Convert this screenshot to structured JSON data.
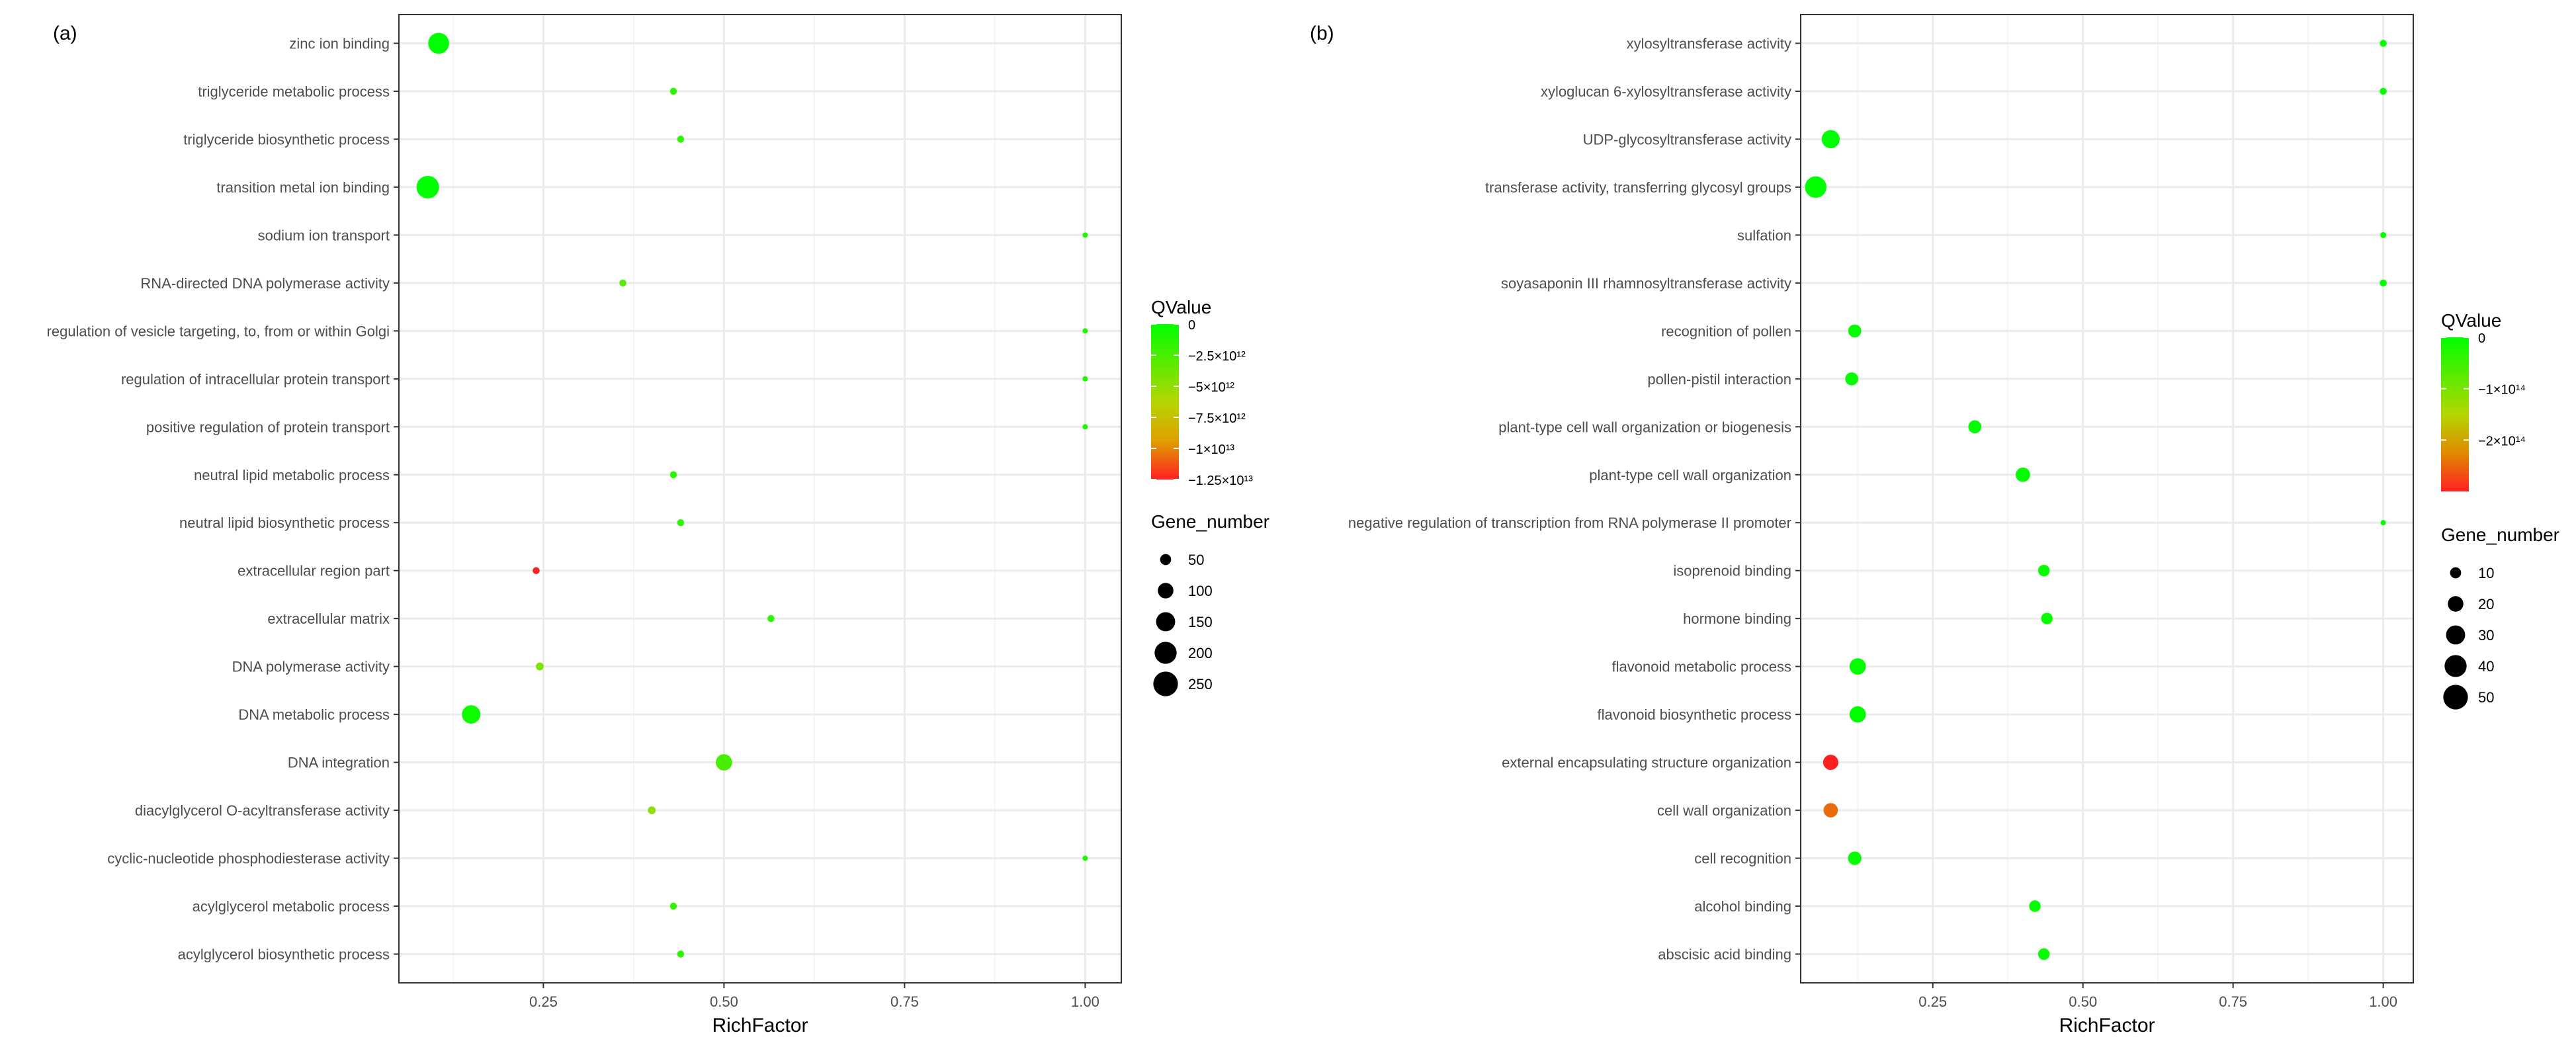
{
  "panels": [
    {
      "panel_label": "(a)",
      "chart_data": {
        "type": "scatter",
        "title": "",
        "xlabel": "RichFactor",
        "ylabel": "",
        "xlim": [
          0.05,
          1.05
        ],
        "xticks": [
          0.25,
          0.5,
          0.75,
          1.0
        ],
        "xtick_labels": [
          "0.25",
          "0.50",
          "0.75",
          "1.00"
        ],
        "grid": true,
        "categories": [
          "zinc ion binding",
          "triglyceride metabolic process",
          "triglyceride biosynthetic process",
          "transition metal ion binding",
          "sodium ion transport",
          "RNA-directed DNA polymerase activity",
          "regulation of vesicle targeting, to, from or within Golgi",
          "regulation of intracellular protein transport",
          "positive regulation of protein transport",
          "neutral lipid metabolic process",
          "neutral lipid biosynthetic process",
          "extracellular region part",
          "extracellular matrix",
          "DNA polymerase activity",
          "DNA metabolic process",
          "DNA integration",
          "diacylglycerol O-acyltransferase activity",
          "cyclic-nucleotide phosphodiesterase activity",
          "acylglycerol metabolic process",
          "acylglycerol biosynthetic process"
        ],
        "richfactor": [
          0.105,
          0.43,
          0.44,
          0.09,
          1.0,
          0.36,
          1.0,
          1.0,
          1.0,
          0.43,
          0.44,
          0.24,
          0.565,
          0.245,
          0.15,
          0.5,
          0.4,
          1.0,
          0.43,
          0.44
        ],
        "qvalue": [
          0,
          -1500000000000.0,
          -1500000000000.0,
          0,
          -1000000000000.0,
          -3000000000000.0,
          -1000000000000.0,
          -1000000000000.0,
          -1000000000000.0,
          -1500000000000.0,
          -1500000000000.0,
          -12500000000000.0,
          -1500000000000.0,
          -4500000000000.0,
          -500000000000.0,
          -2500000000000.0,
          -5000000000000.0,
          -1000000000000.0,
          -1500000000000.0,
          -1500000000000.0
        ],
        "gene_number": [
          180,
          20,
          20,
          210,
          5,
          20,
          5,
          5,
          5,
          20,
          20,
          20,
          20,
          25,
          140,
          110,
          25,
          5,
          20,
          20
        ],
        "color_legend": {
          "title": "QValue",
          "min": -12500000000000.0,
          "max": 0,
          "labels": [
            "0",
            "−2.5×10¹²",
            "−5×10¹²",
            "−7.5×10¹²",
            "−1×10¹³",
            "−1.25×10¹³"
          ],
          "values": [
            0,
            -2500000000000.0,
            -5000000000000.0,
            -7500000000000.0,
            -10000000000000.0,
            -12500000000000.0
          ]
        },
        "size_legend": {
          "title": "Gene_number",
          "values": [
            50,
            100,
            150,
            200,
            250
          ],
          "labels": [
            "50",
            "100",
            "150",
            "200",
            "250"
          ],
          "max_ref": 260
        }
      }
    },
    {
      "panel_label": "(b)",
      "chart_data": {
        "type": "scatter",
        "title": "",
        "xlabel": "RichFactor",
        "ylabel": "",
        "xlim": [
          0.03,
          1.05
        ],
        "xticks": [
          0.25,
          0.5,
          0.75,
          1.0
        ],
        "xtick_labels": [
          "0.25",
          "0.50",
          "0.75",
          "1.00"
        ],
        "grid": true,
        "categories": [
          "xylosyltransferase activity",
          "xyloglucan 6-xylosyltransferase activity",
          "UDP-glycosyltransferase activity",
          "transferase activity, transferring glycosyl groups",
          "sulfation",
          "soyasaponin III rhamnosyltransferase activity",
          "recognition of pollen",
          "pollen-pistil interaction",
          "plant-type cell wall organization or biogenesis",
          "plant-type cell wall organization",
          "negative regulation of transcription from RNA polymerase II promoter",
          "isoprenoid binding",
          "hormone binding",
          "flavonoid metabolic process",
          "flavonoid biosynthetic process",
          "external encapsulating structure organization",
          "cell wall organization",
          "cell recognition",
          "alcohol binding",
          "abscisic acid binding"
        ],
        "richfactor": [
          1.0,
          1.0,
          0.08,
          0.055,
          1.0,
          1.0,
          0.12,
          0.115,
          0.32,
          0.4,
          1.0,
          0.435,
          0.44,
          0.125,
          0.125,
          0.08,
          0.08,
          0.12,
          0.42,
          0.435
        ],
        "qvalue": [
          -5000000000000.0,
          -5000000000000.0,
          0,
          0,
          -4000000000000.0,
          -5000000000000.0,
          -3000000000000.0,
          -3000000000000.0,
          -2000000000000.0,
          -2000000000000.0,
          -3000000000000.0,
          -5000000000000.0,
          -5000000000000.0,
          -1000000000000.0,
          -1000000000000.0,
          -300000000000000.0,
          -250000000000000.0,
          -5000000000000.0,
          -5000000000000.0,
          -5000000000000.0
        ],
        "gene_number": [
          4,
          4,
          27,
          38,
          3,
          4,
          14,
          14,
          14,
          17,
          2,
          11,
          11,
          22,
          22,
          19,
          17,
          15,
          11,
          11
        ],
        "color_legend": {
          "title": "QValue",
          "min": -300000000000000.0,
          "max": 0,
          "labels": [
            "0",
            "−1×10¹⁴",
            "−2×10¹⁴"
          ],
          "values": [
            0,
            -100000000000000.0,
            -200000000000000.0
          ]
        },
        "size_legend": {
          "title": "Gene_number",
          "values": [
            10,
            20,
            30,
            40,
            50
          ],
          "labels": [
            "10",
            "20",
            "30",
            "40",
            "50"
          ],
          "max_ref": 52
        }
      }
    }
  ],
  "colors": {
    "high": "#00ff00",
    "low": "#ff0000",
    "panel_border": "#333333",
    "grid_major": "#ebebeb",
    "grid_minor": "#f5f5f5",
    "text": "#4d4d4d",
    "axis_title": "#000000"
  }
}
